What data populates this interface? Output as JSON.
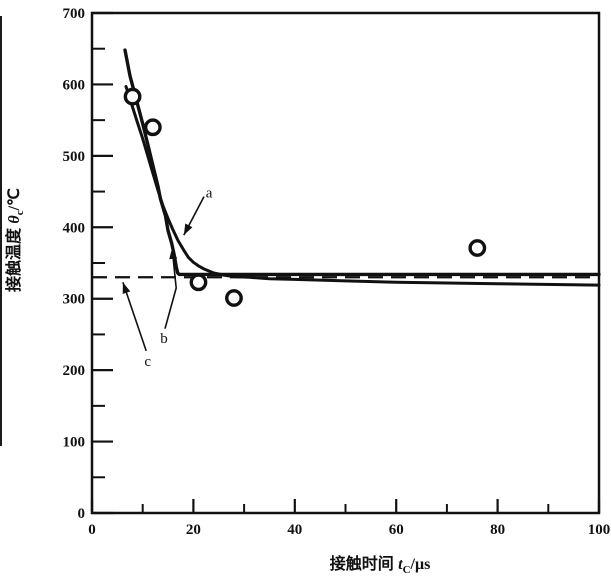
{
  "figure": {
    "background": "#ffffff",
    "ink_color": "#111111"
  },
  "chart_data": {
    "type": "line",
    "title": "",
    "grid": false,
    "legend": "none",
    "x_axis": {
      "full_label": "接触时间 tC/μs",
      "label_parts": {
        "text": "接触时间 ",
        "symbol": "t",
        "subscript": "C",
        "unit": "/μs"
      },
      "min": 0,
      "max": 100,
      "major_ticks": [
        0,
        20,
        40,
        60,
        80,
        100
      ],
      "minor_tick_step": 10
    },
    "y_axis": {
      "full_label": "接触温度 θc/℃",
      "label_parts": {
        "text": "接触温度 ",
        "symbol": "θ",
        "subscript": "c",
        "unit": "/℃"
      },
      "min": 0,
      "max": 700,
      "major_ticks": [
        0,
        100,
        200,
        300,
        400,
        500,
        600,
        700
      ],
      "minor_tick_step": 50
    },
    "series": [
      {
        "name": "a",
        "style": "solid-curve",
        "points": [
          [
            6.7,
            597
          ],
          [
            7.5,
            580
          ],
          [
            8,
            568
          ],
          [
            9,
            546
          ],
          [
            10,
            524
          ],
          [
            11,
            500
          ],
          [
            12,
            476
          ],
          [
            13,
            452
          ],
          [
            14,
            430
          ],
          [
            15,
            412
          ],
          [
            16,
            396
          ],
          [
            17,
            381
          ],
          [
            18,
            369
          ],
          [
            19,
            358
          ],
          [
            20,
            351
          ],
          [
            21,
            346
          ],
          [
            22,
            342
          ],
          [
            24,
            336
          ],
          [
            26,
            333
          ],
          [
            28,
            331
          ],
          [
            31,
            330
          ],
          [
            35,
            328
          ],
          [
            40,
            327
          ],
          [
            50,
            325
          ],
          [
            60,
            323
          ],
          [
            80,
            321
          ],
          [
            100,
            319
          ]
        ]
      },
      {
        "name": "b",
        "style": "solid-curve-with-kink",
        "points": [
          [
            6.5,
            648
          ],
          [
            7.5,
            612
          ],
          [
            8.5,
            585
          ],
          [
            10,
            545
          ],
          [
            11,
            516
          ],
          [
            12,
            487
          ],
          [
            13,
            458
          ],
          [
            13.5,
            440
          ],
          [
            14.5,
            416
          ],
          [
            15,
            395
          ],
          [
            15.7,
            378
          ],
          [
            16.2,
            362
          ],
          [
            16.6,
            345
          ],
          [
            16.9,
            336
          ],
          [
            17.2,
            334
          ],
          [
            100,
            334
          ]
        ]
      },
      {
        "name": "c",
        "style": "dashed-horizontal-line",
        "y": 330,
        "x_start": 0,
        "x_end": 100
      }
    ],
    "scatter_points": {
      "name": "measured-data",
      "marker": "open-circle",
      "points": [
        [
          8,
          583
        ],
        [
          12,
          540
        ],
        [
          21,
          323
        ],
        [
          28,
          301
        ],
        [
          76,
          371
        ]
      ]
    },
    "annotations": [
      {
        "label": "a",
        "label_at": [
          23.1,
          449
        ],
        "arrow": [
          [
            22.1,
            443
          ],
          [
            18.1,
            389
          ]
        ]
      },
      {
        "label": "b",
        "label_at": [
          14.2,
          245
        ],
        "arrow": [
          [
            14.4,
            258
          ],
          [
            16.6,
            315
          ],
          [
            15.8,
            371
          ]
        ]
      },
      {
        "label": "c",
        "label_at": [
          11.0,
          213
        ],
        "arrow": [
          [
            10.7,
            227
          ],
          [
            6.1,
            323
          ]
        ]
      }
    ]
  }
}
